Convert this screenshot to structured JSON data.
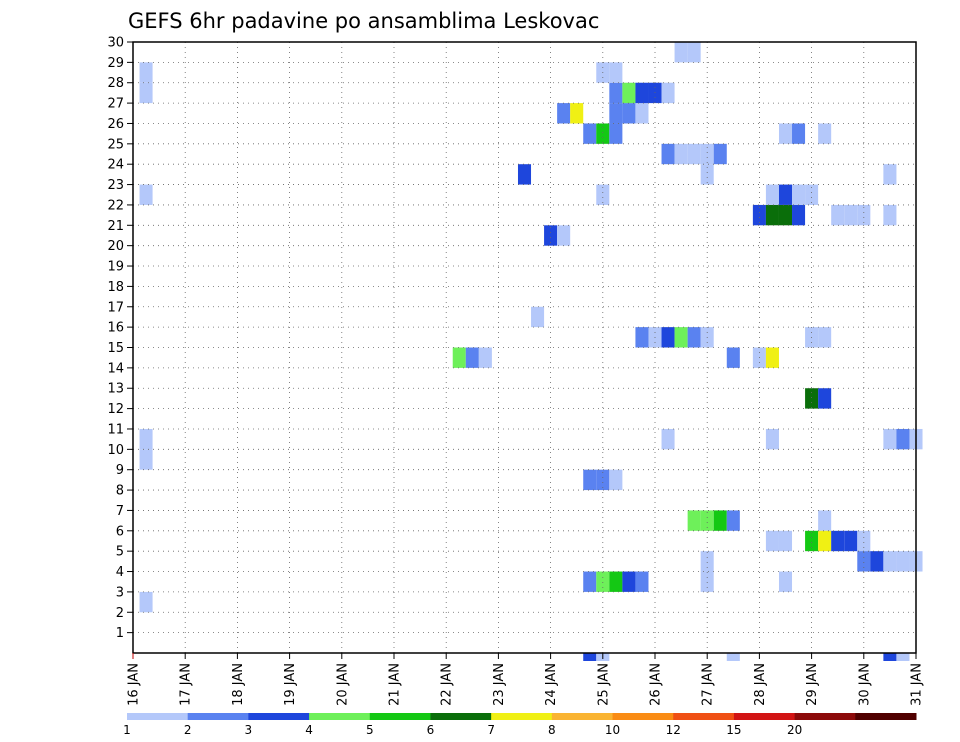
{
  "chart_data": {
    "type": "heatmap",
    "title": "GEFS 6hr padavine po ansamblima Leskovac",
    "y_ticks": [
      "1",
      "2",
      "3",
      "4",
      "5",
      "6",
      "7",
      "8",
      "9",
      "10",
      "11",
      "12",
      "13",
      "14",
      "15",
      "16",
      "17",
      "18",
      "19",
      "20",
      "21",
      "22",
      "23",
      "24",
      "25",
      "26",
      "27",
      "28",
      "29",
      "30"
    ],
    "x_ticks": [
      "16 JAN",
      "17 JAN",
      "18 JAN",
      "19 JAN",
      "20 JAN",
      "21 JAN",
      "22 JAN",
      "23 JAN",
      "24 JAN",
      "25 JAN",
      "26 JAN",
      "27 JAN",
      "28 JAN",
      "29 JAN",
      "30 JAN",
      "31 JAN"
    ],
    "x_range_days": [
      16,
      31
    ],
    "y_range": [
      0,
      30
    ],
    "grid": true,
    "colorbar": {
      "labels": [
        "1",
        "2",
        "3",
        "4",
        "5",
        "6",
        "7",
        "8",
        "10",
        "12",
        "15",
        "20"
      ],
      "colors": [
        "#b4c8fa",
        "#5a82f0",
        "#1e46dc",
        "#6ef05a",
        "#14c814",
        "#0a6e0a",
        "#f0f014",
        "#fab432",
        "#fa8c14",
        "#f05014",
        "#d21414",
        "#8c0a0a",
        "#500000"
      ]
    },
    "cells": [
      {
        "y": 2.5,
        "x": 16.25,
        "c": 0
      },
      {
        "y": 9.5,
        "x": 16.25,
        "c": 0
      },
      {
        "y": 10.5,
        "x": 16.25,
        "c": 0
      },
      {
        "y": 22.5,
        "x": 16.25,
        "c": 0
      },
      {
        "y": 27.5,
        "x": 16.25,
        "c": 0
      },
      {
        "y": 28.5,
        "x": 16.25,
        "c": 0
      },
      {
        "y": 14.5,
        "x": 22.25,
        "c": 3
      },
      {
        "y": 14.5,
        "x": 22.5,
        "c": 1
      },
      {
        "y": 14.5,
        "x": 22.75,
        "c": 0
      },
      {
        "y": 23.5,
        "x": 23.5,
        "c": 2
      },
      {
        "y": 16.5,
        "x": 23.75,
        "c": 0
      },
      {
        "y": 20.5,
        "x": 24.0,
        "c": 2
      },
      {
        "y": 20.5,
        "x": 24.25,
        "c": 0
      },
      {
        "y": 26.5,
        "x": 24.25,
        "c": 1
      },
      {
        "y": 26.5,
        "x": 24.5,
        "c": 6
      },
      {
        "y": -0.5,
        "x": 24.75,
        "c": 2
      },
      {
        "y": -0.5,
        "x": 25.0,
        "c": 0
      },
      {
        "y": 3.5,
        "x": 24.75,
        "c": 1
      },
      {
        "y": 3.5,
        "x": 25.0,
        "c": 3
      },
      {
        "y": 3.5,
        "x": 25.25,
        "c": 4
      },
      {
        "y": 3.5,
        "x": 25.5,
        "c": 2
      },
      {
        "y": 3.5,
        "x": 25.75,
        "c": 1
      },
      {
        "y": 8.5,
        "x": 24.75,
        "c": 1
      },
      {
        "y": 8.5,
        "x": 25.0,
        "c": 1
      },
      {
        "y": 8.5,
        "x": 25.25,
        "c": 0
      },
      {
        "y": 22.5,
        "x": 25.0,
        "c": 0
      },
      {
        "y": 25.5,
        "x": 24.75,
        "c": 1
      },
      {
        "y": 25.5,
        "x": 25.0,
        "c": 4
      },
      {
        "y": 25.5,
        "x": 25.25,
        "c": 1
      },
      {
        "y": 26.5,
        "x": 25.25,
        "c": 1
      },
      {
        "y": 26.5,
        "x": 25.5,
        "c": 1
      },
      {
        "y": 26.5,
        "x": 25.75,
        "c": 0
      },
      {
        "y": 27.5,
        "x": 25.25,
        "c": 1
      },
      {
        "y": 27.5,
        "x": 25.5,
        "c": 3
      },
      {
        "y": 27.5,
        "x": 25.75,
        "c": 2
      },
      {
        "y": 27.5,
        "x": 26.0,
        "c": 2
      },
      {
        "y": 27.5,
        "x": 26.25,
        "c": 0
      },
      {
        "y": 28.5,
        "x": 25.0,
        "c": 0
      },
      {
        "y": 28.5,
        "x": 25.25,
        "c": 0
      },
      {
        "y": 15.5,
        "x": 25.75,
        "c": 1
      },
      {
        "y": 15.5,
        "x": 26.0,
        "c": 0
      },
      {
        "y": 15.5,
        "x": 26.25,
        "c": 2
      },
      {
        "y": 15.5,
        "x": 26.5,
        "c": 3
      },
      {
        "y": 15.5,
        "x": 26.75,
        "c": 1
      },
      {
        "y": 15.5,
        "x": 27.0,
        "c": 0
      },
      {
        "y": 10.5,
        "x": 26.25,
        "c": 0
      },
      {
        "y": 24.5,
        "x": 26.25,
        "c": 1
      },
      {
        "y": 24.5,
        "x": 26.5,
        "c": 0
      },
      {
        "y": 24.5,
        "x": 26.75,
        "c": 0
      },
      {
        "y": 24.5,
        "x": 27.0,
        "c": 0
      },
      {
        "y": 24.5,
        "x": 27.25,
        "c": 1
      },
      {
        "y": 23.5,
        "x": 27.0,
        "c": 0
      },
      {
        "y": 29.5,
        "x": 26.5,
        "c": 0
      },
      {
        "y": 29.5,
        "x": 26.75,
        "c": 0
      },
      {
        "y": 6.5,
        "x": 26.75,
        "c": 3
      },
      {
        "y": 6.5,
        "x": 27.0,
        "c": 3
      },
      {
        "y": 6.5,
        "x": 27.25,
        "c": 4
      },
      {
        "y": 6.5,
        "x": 27.5,
        "c": 1
      },
      {
        "y": 3.5,
        "x": 27.0,
        "c": 0
      },
      {
        "y": 4.5,
        "x": 27.0,
        "c": 0
      },
      {
        "y": -0.5,
        "x": 27.5,
        "c": 0
      },
      {
        "y": 14.5,
        "x": 27.5,
        "c": 1
      },
      {
        "y": 14.5,
        "x": 28.0,
        "c": 0
      },
      {
        "y": 14.5,
        "x": 28.25,
        "c": 6
      },
      {
        "y": 10.5,
        "x": 28.25,
        "c": 0
      },
      {
        "y": 5.5,
        "x": 28.25,
        "c": 0
      },
      {
        "y": 5.5,
        "x": 28.5,
        "c": 0
      },
      {
        "y": 3.5,
        "x": 28.5,
        "c": 0
      },
      {
        "y": 21.5,
        "x": 28.0,
        "c": 2
      },
      {
        "y": 21.5,
        "x": 28.25,
        "c": 5
      },
      {
        "y": 21.5,
        "x": 28.5,
        "c": 5
      },
      {
        "y": 21.5,
        "x": 28.75,
        "c": 2
      },
      {
        "y": 22.5,
        "x": 28.25,
        "c": 0
      },
      {
        "y": 22.5,
        "x": 28.5,
        "c": 2
      },
      {
        "y": 22.5,
        "x": 28.75,
        "c": 0
      },
      {
        "y": 22.5,
        "x": 29.0,
        "c": 0
      },
      {
        "y": 25.5,
        "x": 28.5,
        "c": 0
      },
      {
        "y": 25.5,
        "x": 28.75,
        "c": 1
      },
      {
        "y": 25.5,
        "x": 29.25,
        "c": 0
      },
      {
        "y": 15.5,
        "x": 29.0,
        "c": 0
      },
      {
        "y": 15.5,
        "x": 29.25,
        "c": 0
      },
      {
        "y": 12.5,
        "x": 29.0,
        "c": 5
      },
      {
        "y": 12.5,
        "x": 29.25,
        "c": 2
      },
      {
        "y": 6.5,
        "x": 29.25,
        "c": 0
      },
      {
        "y": 5.5,
        "x": 29.0,
        "c": 4
      },
      {
        "y": 5.5,
        "x": 29.25,
        "c": 6
      },
      {
        "y": 5.5,
        "x": 29.5,
        "c": 2
      },
      {
        "y": 5.5,
        "x": 29.75,
        "c": 2
      },
      {
        "y": 5.5,
        "x": 30.0,
        "c": 0
      },
      {
        "y": 4.5,
        "x": 30.0,
        "c": 1
      },
      {
        "y": 4.5,
        "x": 30.25,
        "c": 2
      },
      {
        "y": 4.5,
        "x": 30.5,
        "c": 0
      },
      {
        "y": 4.5,
        "x": 30.75,
        "c": 0
      },
      {
        "y": 4.5,
        "x": 31.0,
        "c": 0
      },
      {
        "y": 21.5,
        "x": 29.5,
        "c": 0
      },
      {
        "y": 21.5,
        "x": 29.75,
        "c": 0
      },
      {
        "y": 21.5,
        "x": 30.0,
        "c": 0
      },
      {
        "y": 21.5,
        "x": 30.5,
        "c": 0
      },
      {
        "y": 23.5,
        "x": 30.5,
        "c": 0
      },
      {
        "y": 10.5,
        "x": 30.5,
        "c": 0
      },
      {
        "y": 10.5,
        "x": 30.75,
        "c": 1
      },
      {
        "y": 10.5,
        "x": 31.0,
        "c": 0
      },
      {
        "y": -0.5,
        "x": 30.5,
        "c": 2
      },
      {
        "y": -0.5,
        "x": 30.75,
        "c": 0
      }
    ]
  }
}
